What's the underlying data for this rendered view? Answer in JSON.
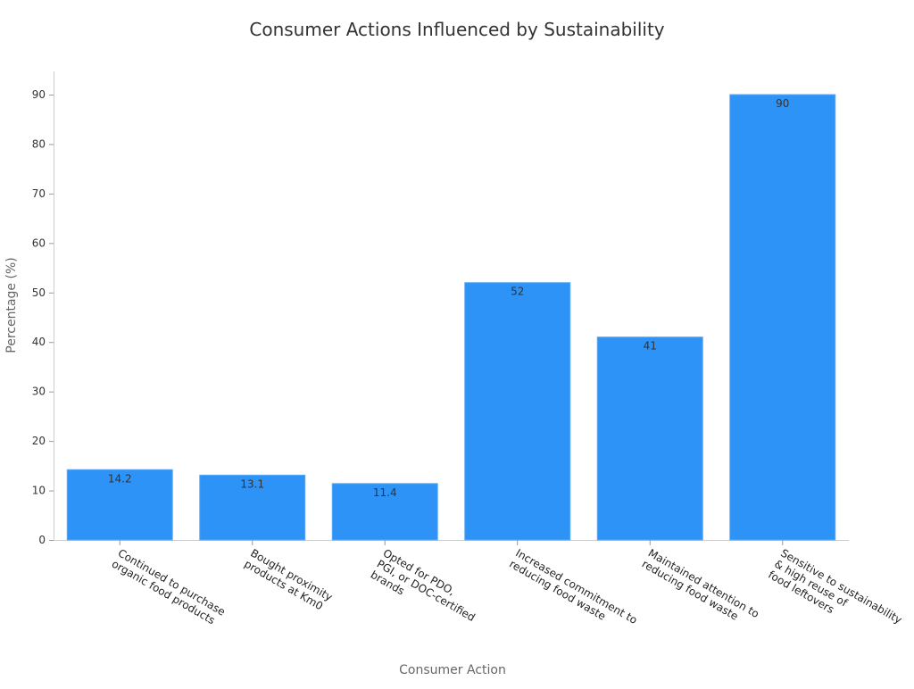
{
  "chart_data": {
    "type": "bar",
    "title": "Consumer Actions Influenced by Sustainability",
    "xlabel": "Consumer Action",
    "ylabel": "Percentage (%)",
    "categories": [
      [
        "Continued to purchase",
        "organic food products"
      ],
      [
        "Bought proximity",
        "products at Km0"
      ],
      [
        "Opted for PDO,",
        "PGI, or DOC-certified",
        "brands"
      ],
      [
        "Increased commitment to",
        "reducing food waste"
      ],
      [
        "Maintained attention to",
        "reducing food waste"
      ],
      [
        "Sensitive to sustainability",
        "& high reuse of",
        "food leftovers"
      ]
    ],
    "values": [
      14.2,
      13.1,
      11.4,
      52,
      41,
      90
    ],
    "value_labels": [
      "14.2",
      "13.1",
      "11.4",
      "52",
      "41",
      "90"
    ],
    "yticks": [
      0,
      10,
      20,
      30,
      40,
      50,
      60,
      70,
      80,
      90
    ],
    "ylim": [
      0,
      94.6
    ],
    "grid": false,
    "bar_color": "#2e93f6"
  }
}
